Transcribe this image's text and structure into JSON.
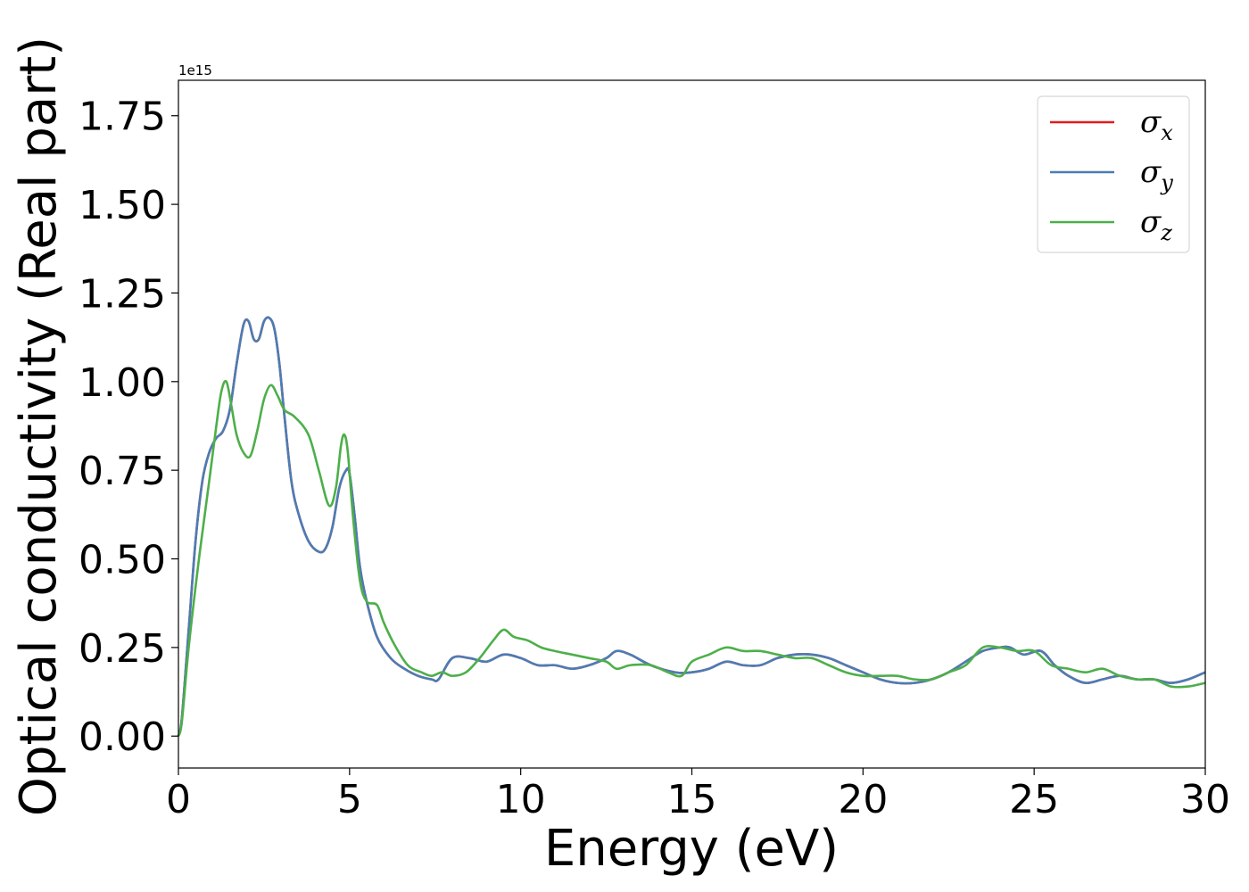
{
  "chart_data": {
    "type": "line",
    "xlabel": "Energy (eV)",
    "ylabel": "Optical conductivity (Real part)",
    "y_offset_label": "1e15",
    "xlim": [
      0,
      30
    ],
    "ylim": [
      -0.09,
      1.85
    ],
    "x_ticks": [
      0,
      5,
      10,
      15,
      20,
      25,
      30
    ],
    "x_tick_labels": [
      "0",
      "5",
      "10",
      "15",
      "20",
      "25",
      "30"
    ],
    "y_ticks": [
      0.0,
      0.25,
      0.5,
      0.75,
      1.0,
      1.25,
      1.5,
      1.75
    ],
    "y_tick_labels": [
      "0.00",
      "0.25",
      "0.50",
      "0.75",
      "1.00",
      "1.25",
      "1.50",
      "1.75"
    ],
    "grid": false,
    "legend_position": "top-right",
    "series": [
      {
        "name": "σ",
        "subscript": "x",
        "color": "#e41a1c",
        "x": [
          0,
          0.1,
          0.3,
          0.5,
          0.7,
          0.9,
          1.1,
          1.3,
          1.5,
          1.7,
          1.9,
          2.05,
          2.2,
          2.35,
          2.5,
          2.65,
          2.8,
          2.95,
          3.1,
          3.3,
          3.5,
          3.8,
          4.1,
          4.3,
          4.5,
          4.7,
          4.9,
          5.0,
          5.15,
          5.3,
          5.5,
          5.8,
          6.2,
          6.6,
          7.0,
          7.4,
          7.6,
          8.0,
          8.5,
          9.0,
          9.5,
          10.0,
          10.5,
          11.0,
          11.5,
          12.0,
          12.5,
          12.8,
          13.2,
          13.8,
          14.5,
          15.0,
          15.5,
          16.0,
          16.5,
          17.0,
          17.5,
          18.0,
          18.5,
          19.0,
          19.5,
          20.0,
          20.5,
          21.0,
          21.5,
          22.0,
          22.5,
          23.0,
          23.5,
          24.0,
          24.3,
          24.7,
          25.2,
          25.6,
          26.0,
          26.5,
          27.0,
          27.5,
          28.0,
          28.5,
          29.0,
          29.5,
          30.0
        ],
        "values": [
          0.0,
          0.05,
          0.3,
          0.55,
          0.72,
          0.8,
          0.84,
          0.86,
          0.92,
          1.05,
          1.16,
          1.17,
          1.12,
          1.12,
          1.17,
          1.18,
          1.15,
          1.05,
          0.9,
          0.72,
          0.63,
          0.55,
          0.52,
          0.53,
          0.59,
          0.7,
          0.75,
          0.74,
          0.62,
          0.48,
          0.38,
          0.28,
          0.22,
          0.19,
          0.17,
          0.16,
          0.16,
          0.22,
          0.22,
          0.21,
          0.23,
          0.22,
          0.2,
          0.2,
          0.19,
          0.2,
          0.22,
          0.24,
          0.23,
          0.2,
          0.18,
          0.18,
          0.19,
          0.21,
          0.2,
          0.2,
          0.22,
          0.23,
          0.23,
          0.22,
          0.2,
          0.18,
          0.16,
          0.15,
          0.15,
          0.16,
          0.18,
          0.21,
          0.24,
          0.25,
          0.25,
          0.23,
          0.24,
          0.2,
          0.17,
          0.15,
          0.16,
          0.17,
          0.16,
          0.16,
          0.15,
          0.16,
          0.18
        ]
      },
      {
        "name": "σ",
        "subscript": "y",
        "color": "#4a7db5",
        "x": [
          0,
          0.1,
          0.3,
          0.5,
          0.7,
          0.9,
          1.1,
          1.3,
          1.5,
          1.7,
          1.9,
          2.05,
          2.2,
          2.35,
          2.5,
          2.65,
          2.8,
          2.95,
          3.1,
          3.3,
          3.5,
          3.8,
          4.1,
          4.3,
          4.5,
          4.7,
          4.9,
          5.0,
          5.15,
          5.3,
          5.5,
          5.8,
          6.2,
          6.6,
          7.0,
          7.4,
          7.6,
          8.0,
          8.5,
          9.0,
          9.5,
          10.0,
          10.5,
          11.0,
          11.5,
          12.0,
          12.5,
          12.8,
          13.2,
          13.8,
          14.5,
          15.0,
          15.5,
          16.0,
          16.5,
          17.0,
          17.5,
          18.0,
          18.5,
          19.0,
          19.5,
          20.0,
          20.5,
          21.0,
          21.5,
          22.0,
          22.5,
          23.0,
          23.5,
          24.0,
          24.3,
          24.7,
          25.2,
          25.6,
          26.0,
          26.5,
          27.0,
          27.5,
          28.0,
          28.5,
          29.0,
          29.5,
          30.0
        ],
        "values": [
          0.0,
          0.05,
          0.3,
          0.55,
          0.72,
          0.8,
          0.84,
          0.86,
          0.92,
          1.05,
          1.16,
          1.17,
          1.12,
          1.12,
          1.17,
          1.18,
          1.15,
          1.05,
          0.9,
          0.72,
          0.63,
          0.55,
          0.52,
          0.53,
          0.59,
          0.7,
          0.75,
          0.74,
          0.62,
          0.48,
          0.38,
          0.28,
          0.22,
          0.19,
          0.17,
          0.16,
          0.16,
          0.22,
          0.22,
          0.21,
          0.23,
          0.22,
          0.2,
          0.2,
          0.19,
          0.2,
          0.22,
          0.24,
          0.23,
          0.2,
          0.18,
          0.18,
          0.19,
          0.21,
          0.2,
          0.2,
          0.22,
          0.23,
          0.23,
          0.22,
          0.2,
          0.18,
          0.16,
          0.15,
          0.15,
          0.16,
          0.18,
          0.21,
          0.24,
          0.25,
          0.25,
          0.23,
          0.24,
          0.2,
          0.17,
          0.15,
          0.16,
          0.17,
          0.16,
          0.16,
          0.15,
          0.16,
          0.18
        ]
      },
      {
        "name": "σ",
        "subscript": "z",
        "color": "#4daf4a",
        "x": [
          0,
          0.1,
          0.3,
          0.6,
          0.9,
          1.1,
          1.25,
          1.4,
          1.55,
          1.7,
          1.9,
          2.1,
          2.3,
          2.5,
          2.7,
          2.9,
          3.1,
          3.4,
          3.8,
          4.1,
          4.4,
          4.6,
          4.75,
          4.85,
          4.95,
          5.1,
          5.3,
          5.5,
          5.8,
          6.0,
          6.3,
          6.7,
          7.1,
          7.4,
          7.7,
          8.0,
          8.4,
          8.8,
          9.2,
          9.5,
          9.8,
          10.2,
          10.6,
          11.0,
          11.5,
          12.0,
          12.5,
          12.8,
          13.2,
          13.8,
          14.3,
          14.7,
          15.0,
          15.5,
          16.0,
          16.5,
          17.0,
          17.5,
          18.0,
          18.5,
          19.0,
          19.5,
          20.0,
          20.5,
          21.0,
          21.5,
          22.0,
          22.5,
          23.0,
          23.5,
          24.0,
          24.5,
          25.0,
          25.5,
          26.0,
          26.5,
          27.0,
          27.5,
          28.0,
          28.5,
          29.0,
          29.5,
          30.0
        ],
        "values": [
          0.0,
          0.04,
          0.25,
          0.5,
          0.72,
          0.87,
          0.97,
          1.0,
          0.93,
          0.85,
          0.8,
          0.79,
          0.86,
          0.95,
          0.99,
          0.96,
          0.92,
          0.9,
          0.85,
          0.75,
          0.65,
          0.7,
          0.82,
          0.85,
          0.8,
          0.62,
          0.44,
          0.38,
          0.37,
          0.32,
          0.26,
          0.2,
          0.18,
          0.17,
          0.18,
          0.17,
          0.18,
          0.22,
          0.27,
          0.3,
          0.28,
          0.27,
          0.25,
          0.24,
          0.23,
          0.22,
          0.21,
          0.19,
          0.2,
          0.2,
          0.18,
          0.17,
          0.21,
          0.23,
          0.25,
          0.24,
          0.24,
          0.23,
          0.22,
          0.22,
          0.2,
          0.18,
          0.17,
          0.17,
          0.17,
          0.16,
          0.16,
          0.18,
          0.2,
          0.25,
          0.25,
          0.24,
          0.24,
          0.2,
          0.19,
          0.18,
          0.19,
          0.17,
          0.16,
          0.16,
          0.14,
          0.14,
          0.15
        ]
      }
    ]
  }
}
